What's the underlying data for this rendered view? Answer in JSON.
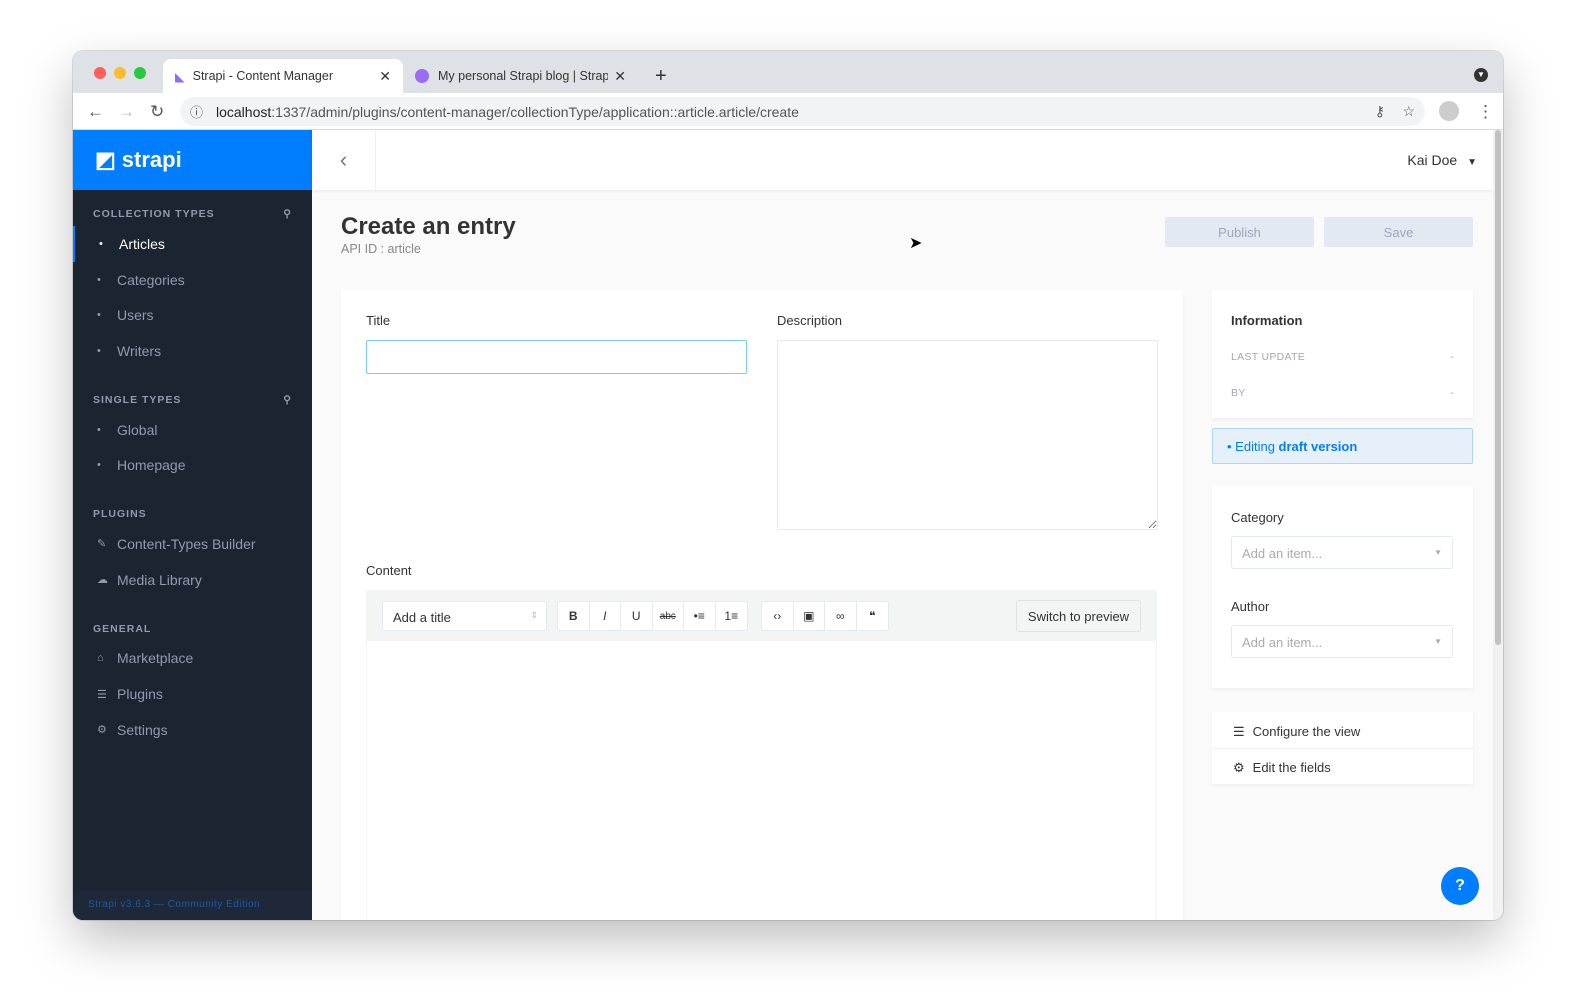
{
  "browser": {
    "tabs": [
      {
        "title": "Strapi - Content Manager"
      },
      {
        "title": "My personal Strapi blog | Strap"
      }
    ],
    "url_host": "localhost",
    "url_path": ":1337/admin/plugins/content-manager/collectionType/application::article.article/create"
  },
  "sidebar": {
    "logo": "strapi",
    "sections": [
      {
        "title": "COLLECTION TYPES",
        "items": [
          "Articles",
          "Categories",
          "Users",
          "Writers"
        ]
      },
      {
        "title": "SINGLE TYPES",
        "items": [
          "Global",
          "Homepage"
        ]
      },
      {
        "title": "PLUGINS",
        "items": [
          "Content-Types Builder",
          "Media Library"
        ]
      },
      {
        "title": "GENERAL",
        "items": [
          "Marketplace",
          "Plugins",
          "Settings"
        ]
      }
    ],
    "active": "Articles",
    "footer": "Strapi v3.6.3 — Community Edition"
  },
  "header": {
    "user": "Kai Doe"
  },
  "page": {
    "title": "Create an entry",
    "subtitle": "API ID : article",
    "publish": "Publish",
    "save": "Save"
  },
  "form": {
    "title_label": "Title",
    "title_value": "",
    "description_label": "Description",
    "content_label": "Content",
    "heading_select": "Add a title",
    "toolbar": [
      "B",
      "I",
      "U",
      "abc",
      "•≡",
      "1≡",
      "‹›",
      "▣",
      "∞",
      "❝"
    ],
    "switch_preview": "Switch to preview"
  },
  "info": {
    "title": "Information",
    "last_update_label": "LAST UPDATE",
    "last_update": "-",
    "by_label": "BY",
    "by": "-",
    "editing": "Editing",
    "draft": "draft version"
  },
  "relations": {
    "category_label": "Category",
    "category_placeholder": "Add an item...",
    "author_label": "Author",
    "author_placeholder": "Add an item..."
  },
  "links": {
    "configure": "Configure the view",
    "edit_fields": "Edit the fields"
  },
  "help": "?",
  "colors": {
    "brand": "#007eff",
    "sidebar": "#1b2431"
  }
}
